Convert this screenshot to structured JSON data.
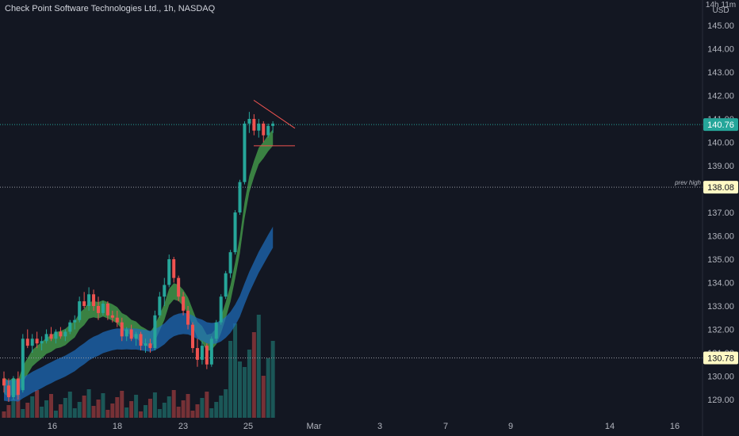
{
  "header": {
    "title": "Check Point Software Technologies Ltd., 1h, NASDAQ"
  },
  "chart_data": {
    "type": "candlestick",
    "title": "Check Point Software Technologies Ltd., 1h, NASDAQ",
    "currency_label": "USD",
    "corner_label": "14h 11m",
    "ylim": [
      128.5,
      145.8
    ],
    "y_ticks": [
      129,
      130,
      131,
      132,
      133,
      134,
      135,
      136,
      137,
      138,
      139,
      140,
      141,
      142,
      143,
      144,
      145
    ],
    "y_tick_labels": [
      "129.00",
      "130.00",
      "131.00",
      "132.00",
      "133.00",
      "134.00",
      "135.00",
      "136.00",
      "137.00",
      "138.00",
      "139.00",
      "140.00",
      "141.00",
      "142.00",
      "143.00",
      "144.00",
      "145.00"
    ],
    "x_ticks": [
      "16",
      "18",
      "23",
      "25",
      "Mar",
      "3",
      "7",
      "9",
      "14",
      "16"
    ],
    "last_price": {
      "value": 140.76,
      "label": "140.76",
      "color": "#26a69a"
    },
    "horizontal_levels": [
      {
        "value": 138.08,
        "label": "138.08",
        "tag": "prev high"
      },
      {
        "value": 130.78,
        "label": "130.78",
        "tag": ""
      }
    ],
    "triangle": {
      "upper": [
        [
          141.8,
          140.7
        ]
      ],
      "lower": 139.85
    },
    "grid": false,
    "colors": {
      "up": "#26a69a",
      "down": "#ef5350",
      "fast_band": "#4caf50",
      "slow_band": "#1e6fbf",
      "background": "#131722"
    }
  }
}
